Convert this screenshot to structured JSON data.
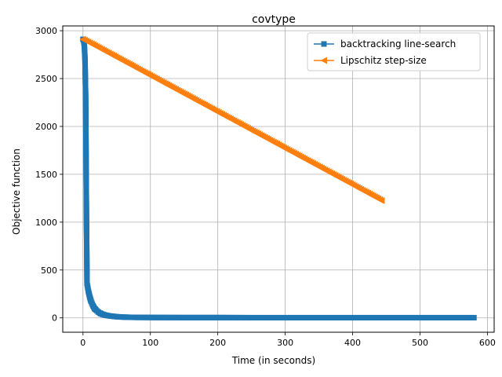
{
  "chart_data": {
    "type": "line",
    "title": "covtype",
    "xlabel": "Time (in seconds)",
    "ylabel": "Objective function",
    "xlim": [
      -30,
      610
    ],
    "ylim": [
      -150,
      3050
    ],
    "xticks": [
      0,
      100,
      200,
      300,
      400,
      500,
      600
    ],
    "yticks": [
      0,
      500,
      1000,
      1500,
      2000,
      2500,
      3000
    ],
    "grid": true,
    "legend_position": "top-right",
    "series": [
      {
        "name": "backtracking line-search",
        "color": "#1f77b4",
        "marker": "square",
        "x": [
          0,
          1,
          2,
          3,
          4,
          5,
          6,
          7,
          8,
          9,
          10,
          11,
          12,
          13,
          14,
          15,
          17,
          19,
          21,
          23,
          25,
          28,
          31,
          35,
          40,
          45,
          50,
          60,
          70,
          80,
          100,
          150,
          200,
          250,
          300,
          350,
          400,
          450,
          500,
          550,
          580
        ],
        "y": [
          2910,
          2900,
          2850,
          2700,
          2310,
          1220,
          360,
          320,
          280,
          250,
          220,
          195,
          175,
          158,
          140,
          125,
          100,
          85,
          72,
          60,
          50,
          40,
          33,
          26,
          20,
          16,
          12,
          8,
          6,
          5,
          4,
          3,
          3,
          2,
          2,
          2,
          2,
          2,
          2,
          2,
          2
        ]
      },
      {
        "name": "Lipschitz step-size",
        "color": "#ff7f0e",
        "marker": "triangle-left",
        "x": [
          0,
          443
        ],
        "y": [
          2910,
          1225
        ]
      }
    ]
  }
}
